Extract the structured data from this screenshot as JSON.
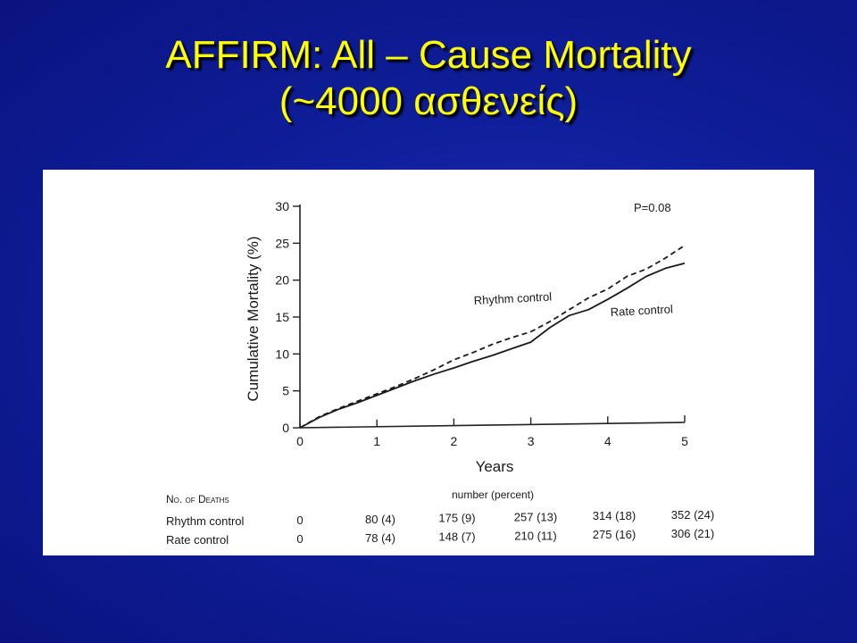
{
  "slide": {
    "title_line1": "AFFIRM: All – Cause Mortality",
    "title_line2": "(~4000 ασθενείς)"
  },
  "chart_data": {
    "type": "line",
    "title": "",
    "xlabel": "Years",
    "ylabel": "Cumulative Mortality (%)",
    "xlim": [
      0,
      5
    ],
    "ylim": [
      0,
      30
    ],
    "x_ticks": [
      0,
      1,
      2,
      3,
      4,
      5
    ],
    "y_ticks": [
      0,
      5,
      10,
      15,
      20,
      25,
      30
    ],
    "grid": false,
    "annotation": "P=0.08",
    "series": [
      {
        "name": "Rhythm control",
        "style": "dashed",
        "x": [
          0,
          0.25,
          0.5,
          0.75,
          1,
          1.25,
          1.5,
          1.75,
          2,
          2.25,
          2.5,
          2.75,
          3,
          3.25,
          3.5,
          3.75,
          4,
          4.25,
          4.5,
          4.75,
          5
        ],
        "y": [
          0,
          1.5,
          2.6,
          3.6,
          4.6,
          5.6,
          6.7,
          7.9,
          9.2,
          10.2,
          11.3,
          12.2,
          13.0,
          14.4,
          16.0,
          17.6,
          18.8,
          20.5,
          21.5,
          23.0,
          24.7
        ]
      },
      {
        "name": "Rate control",
        "style": "solid",
        "x": [
          0,
          0.25,
          0.5,
          0.75,
          1,
          1.25,
          1.5,
          1.75,
          2,
          2.25,
          2.5,
          2.75,
          3,
          3.25,
          3.5,
          3.75,
          4,
          4.25,
          4.5,
          4.75,
          5
        ],
        "y": [
          0,
          1.4,
          2.5,
          3.4,
          4.4,
          5.4,
          6.4,
          7.3,
          8.1,
          9.0,
          9.8,
          10.7,
          11.6,
          13.6,
          15.2,
          16.0,
          17.4,
          18.9,
          20.5,
          21.6,
          22.3
        ]
      }
    ],
    "deaths_table": {
      "title": "No. of Deaths",
      "subtitle": "number (percent)",
      "rows": [
        {
          "label": "Rhythm control",
          "values": [
            "0",
            "80 (4)",
            "175 (9)",
            "257 (13)",
            "314 (18)",
            "352 (24)"
          ]
        },
        {
          "label": "Rate control",
          "values": [
            "0",
            "78 (4)",
            "148 (7)",
            "210 (11)",
            "275 (16)",
            "306 (21)"
          ]
        }
      ]
    }
  }
}
